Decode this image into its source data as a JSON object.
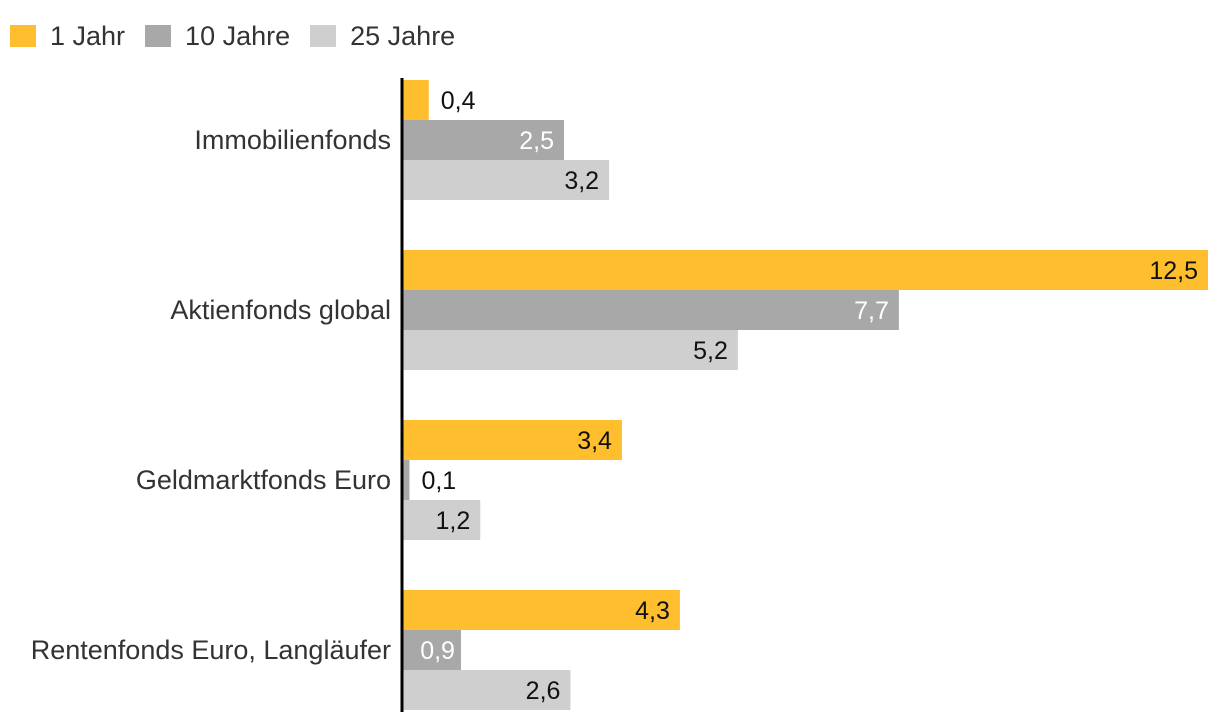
{
  "chart_data": {
    "type": "bar",
    "orientation": "horizontal",
    "categories": [
      "Immobilienfonds",
      "Aktienfonds global",
      "Geldmarktfonds Euro",
      "Rentenfonds Euro, Langläufer"
    ],
    "series": [
      {
        "name": "1 Jahr",
        "color": "#FFBE2E",
        "values": [
          0.4,
          12.5,
          3.4,
          4.3
        ],
        "labels": [
          "0,4",
          "12,5",
          "3,4",
          "4,3"
        ]
      },
      {
        "name": "10 Jahre",
        "color": "#A8A8A8",
        "values": [
          2.5,
          7.7,
          0.1,
          0.9
        ],
        "labels": [
          "2,5",
          "7,7",
          "0,1",
          "0,9"
        ]
      },
      {
        "name": "25 Jahre",
        "color": "#CFCFCF",
        "values": [
          3.2,
          5.2,
          1.2,
          2.6
        ],
        "labels": [
          "3,2",
          "5,2",
          "1,2",
          "2,6"
        ]
      }
    ],
    "xlim": [
      0,
      12.5
    ],
    "title": "",
    "xlabel": "",
    "ylabel": "",
    "legend": "top-left"
  }
}
